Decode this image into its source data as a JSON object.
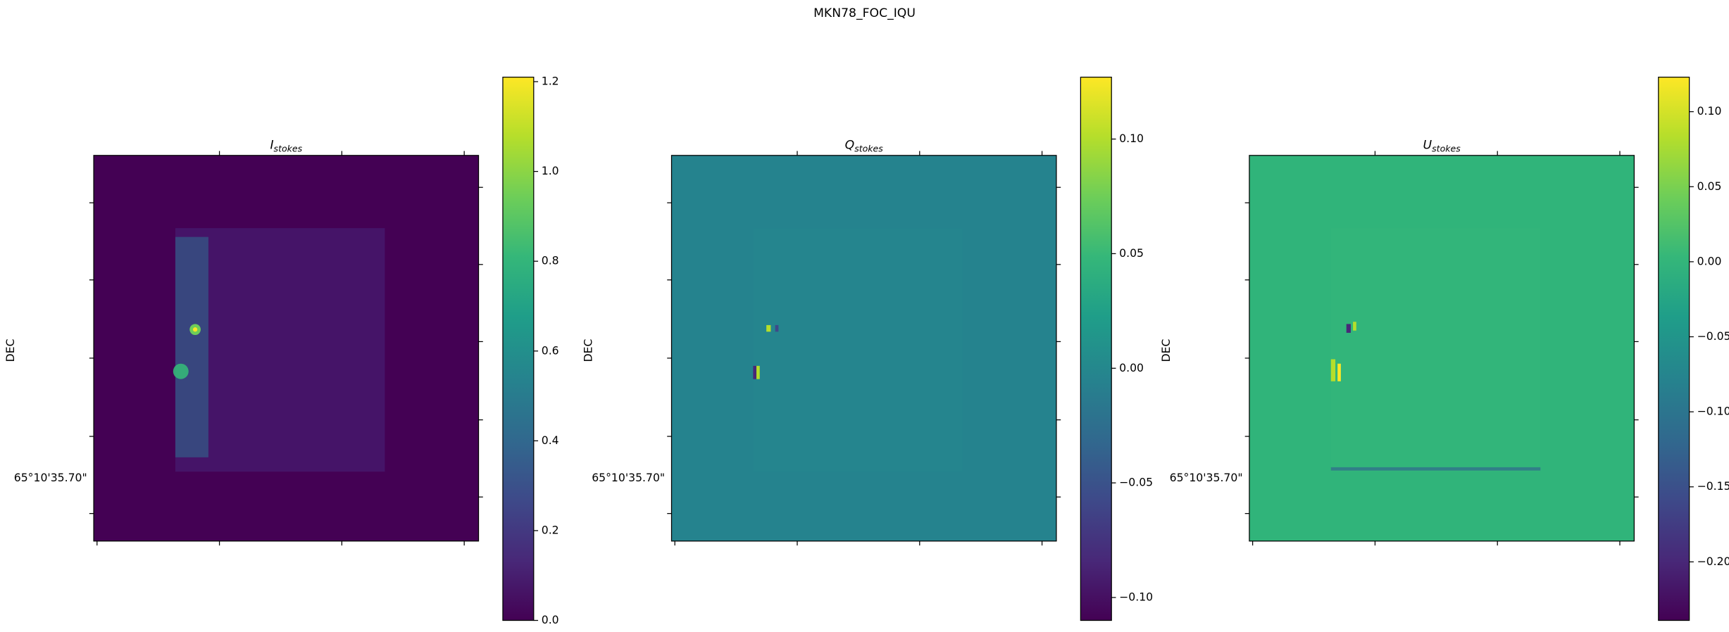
{
  "title": "MKN78_FOC_IQU",
  "chart_data": [
    {
      "type": "heatmap",
      "title": "I",
      "title_sub": "stokes",
      "ylabel": "DEC",
      "ytick_label": "65°10'35.70\"",
      "ylim": [
        0,
        1.21
      ],
      "yticks": [
        {
          "value": 0,
          "label": "0.0"
        },
        0.2,
        0.4,
        0.6,
        0.8,
        {
          "value": 1,
          "label": "1.0"
        },
        1.2
      ]
    },
    {
      "type": "heatmap",
      "title": "Q",
      "title_sub": "stokes",
      "ylabel": "DEC",
      "ytick_label": "65°10'35.70\"",
      "ylim": [
        -0.11,
        0.127
      ],
      "yticks": [
        {
          "value": -0.1,
          "label": "−0.10"
        },
        {
          "value": -0.05,
          "label": "−0.05"
        },
        {
          "value": 0,
          "label": "0.00"
        },
        0.05,
        {
          "value": 0.1,
          "label": "0.10"
        }
      ]
    },
    {
      "type": "heatmap",
      "title": "U",
      "title_sub": "stokes",
      "ylabel": "DEC",
      "ytick_label": "65°10'35.70\"",
      "ylim": [
        -0.239,
        0.123
      ],
      "yticks": [
        {
          "value": -0.2,
          "label": "−0.20"
        },
        {
          "value": -0.15,
          "label": "−0.15"
        },
        {
          "value": -0.1,
          "label": "−0.10"
        },
        {
          "value": -0.05,
          "label": "−0.05"
        },
        {
          "value": 0,
          "label": "0.00"
        },
        0.05,
        {
          "value": 0.1,
          "label": "0.10"
        }
      ]
    }
  ]
}
